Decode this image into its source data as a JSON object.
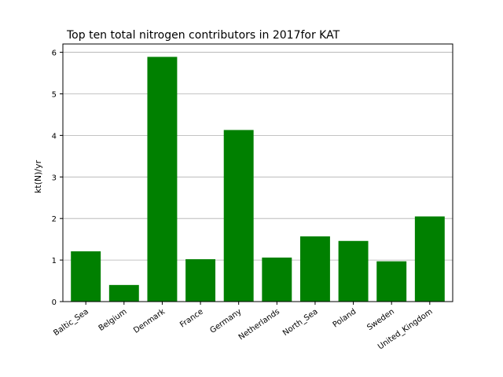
{
  "chart_data": {
    "type": "bar",
    "title": "Top ten total nitrogen contributors in 2017for  KAT",
    "xlabel": "",
    "ylabel": "kt(N)/yr",
    "categories": [
      "Baltic_Sea",
      "Belgium",
      "Denmark",
      "France",
      "Germany",
      "Netherlands",
      "North_Sea",
      "Poland",
      "Sweden",
      "United_Kingdom"
    ],
    "values": [
      1.21,
      0.4,
      5.89,
      1.02,
      4.13,
      1.06,
      1.57,
      1.46,
      0.97,
      2.05
    ],
    "ylim": [
      0,
      6.2
    ],
    "yticks": [
      0,
      1,
      2,
      3,
      4,
      5,
      6
    ],
    "grid": "y",
    "bar_color": "#008000",
    "grid_color": "#b0b0b0"
  }
}
